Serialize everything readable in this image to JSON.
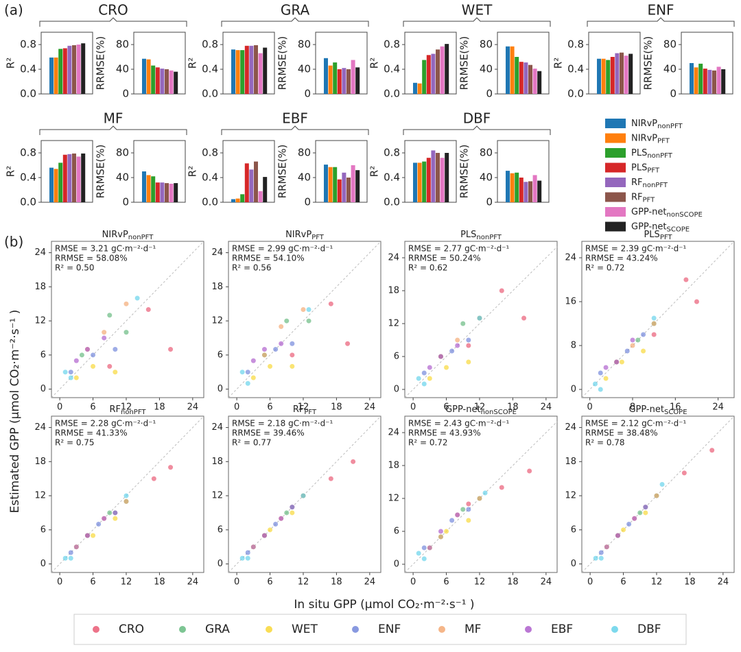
{
  "figure": {
    "panel_labels": [
      "(a)",
      "(b)"
    ],
    "xlabel": "In situ GPP (μmol CO₂·m⁻²·s⁻¹ )",
    "ylabel": "Estimated GPP (μmol CO₂·m⁻²·s⁻¹ )",
    "methods": [
      {
        "name": "NIRvP",
        "sub": "nonPFT",
        "color": "#1f77b4"
      },
      {
        "name": "NIRvP",
        "sub": "PFT",
        "color": "#ff7f0e"
      },
      {
        "name": "PLS",
        "sub": "nonPFT",
        "color": "#2ca02c"
      },
      {
        "name": "PLS",
        "sub": "PFT",
        "color": "#d62728"
      },
      {
        "name": "RF",
        "sub": "nonPFT",
        "color": "#9467bd"
      },
      {
        "name": "RF",
        "sub": "PFT",
        "color": "#8c564b"
      },
      {
        "name": "GPP-net",
        "sub": "nonSCOPE",
        "color": "#e377c2"
      },
      {
        "name": "GPP-net",
        "sub": "SCOPE",
        "color": "#222222"
      }
    ],
    "pfts": [
      {
        "name": "CRO",
        "color": "#e8506c"
      },
      {
        "name": "GRA",
        "color": "#5db678"
      },
      {
        "name": "WET",
        "color": "#f7d52a"
      },
      {
        "name": "ENF",
        "color": "#6a7fd8"
      },
      {
        "name": "MF",
        "color": "#f2a46c"
      },
      {
        "name": "EBF",
        "color": "#a955c9"
      },
      {
        "name": "DBF",
        "color": "#5ccfe9"
      }
    ]
  },
  "chart_data": [
    {
      "type": "bar",
      "title": "CRO",
      "ylabel": "R²",
      "values": [
        0.59,
        0.59,
        0.73,
        0.74,
        0.78,
        0.79,
        0.8,
        0.82
      ],
      "ylim": [
        0,
        1
      ],
      "yticks": [
        {
          "value": 0,
          "label": "0.0"
        },
        0.4,
        0.8
      ]
    },
    {
      "type": "bar",
      "ylabel": "RRMSE(%)",
      "values": [
        57,
        56,
        46,
        43,
        41,
        40,
        38,
        36
      ],
      "ylim": [
        0,
        100
      ],
      "yticks": [
        0,
        40,
        80
      ]
    },
    {
      "type": "bar",
      "title": "GRA",
      "ylabel": "R²",
      "values": [
        0.72,
        0.71,
        0.71,
        0.78,
        0.78,
        0.79,
        0.66,
        0.75
      ],
      "ylim": [
        0,
        1
      ],
      "yticks": [
        {
          "value": 0,
          "label": "0.0"
        },
        0.4,
        0.8
      ]
    },
    {
      "type": "bar",
      "ylabel": "RRMSE(%)",
      "values": [
        58,
        46,
        51,
        40,
        42,
        40,
        55,
        43
      ],
      "ylim": [
        0,
        100
      ],
      "yticks": [
        0,
        40,
        80
      ]
    },
    {
      "type": "bar",
      "title": "WET",
      "ylabel": "R²",
      "values": [
        0.18,
        0.17,
        0.55,
        0.63,
        0.65,
        0.72,
        0.77,
        0.81
      ],
      "ylim": [
        0,
        1
      ],
      "yticks": [
        {
          "value": 0,
          "label": "0.0"
        },
        0.4,
        0.8
      ]
    },
    {
      "type": "bar",
      "ylabel": "RRMSE(%)",
      "values": [
        77,
        77,
        60,
        52,
        51,
        47,
        41,
        37
      ],
      "ylim": [
        0,
        100
      ],
      "yticks": [
        0,
        40,
        80
      ]
    },
    {
      "type": "bar",
      "title": "ENF",
      "ylabel": "R²",
      "values": [
        0.57,
        0.57,
        0.55,
        0.6,
        0.66,
        0.67,
        0.62,
        0.65
      ],
      "ylim": [
        0,
        1
      ],
      "yticks": [
        {
          "value": 0,
          "label": "0.0"
        },
        0.4,
        0.8
      ]
    },
    {
      "type": "bar",
      "ylabel": "RRMSE(%)",
      "values": [
        50,
        43,
        49,
        41,
        39,
        38,
        44,
        40
      ],
      "ylim": [
        0,
        100
      ],
      "yticks": [
        0,
        40,
        80
      ]
    },
    {
      "type": "bar",
      "title": "MF",
      "ylabel": "R²",
      "values": [
        0.56,
        0.54,
        0.64,
        0.77,
        0.78,
        0.79,
        0.74,
        0.79
      ],
      "ylim": [
        0,
        1
      ],
      "yticks": [
        {
          "value": 0,
          "label": "0.0"
        },
        0.4,
        0.8
      ]
    },
    {
      "type": "bar",
      "ylabel": "RRMSE(%)",
      "values": [
        50,
        44,
        42,
        32,
        32,
        31,
        30,
        31
      ],
      "ylim": [
        0,
        100
      ],
      "yticks": [
        0,
        40,
        80
      ]
    },
    {
      "type": "bar",
      "title": "EBF",
      "ylabel": "R²",
      "values": [
        0.05,
        0.06,
        0.13,
        0.63,
        0.53,
        0.66,
        0.18,
        0.41
      ],
      "ylim": [
        0,
        1
      ],
      "yticks": [
        {
          "value": 0,
          "label": "0.0"
        },
        0.4,
        0.8
      ]
    },
    {
      "type": "bar",
      "ylabel": "RRMSE(%)",
      "values": [
        61,
        57,
        57,
        37,
        48,
        40,
        60,
        52
      ],
      "ylim": [
        0,
        100
      ],
      "yticks": [
        0,
        40,
        80
      ]
    },
    {
      "type": "bar",
      "title": "DBF",
      "ylabel": "R²",
      "values": [
        0.64,
        0.64,
        0.66,
        0.72,
        0.84,
        0.8,
        0.72,
        0.8
      ],
      "ylim": [
        0,
        1
      ],
      "yticks": [
        {
          "value": 0,
          "label": "0.0"
        },
        0.4,
        0.8
      ]
    },
    {
      "type": "bar",
      "ylabel": "RRMSE(%)",
      "values": [
        51,
        47,
        48,
        40,
        33,
        34,
        44,
        35
      ],
      "ylim": [
        0,
        100
      ],
      "yticks": [
        0,
        40,
        80
      ]
    },
    {
      "type": "scatter",
      "title": "NIRvP",
      "title_sub": "nonPFT",
      "annotations": [
        "RMSE = 3.21 gC·m⁻²·d⁻¹",
        "RRMSE = 58.08%",
        "R² = 0.50"
      ],
      "xlim": [
        -1.5,
        26
      ],
      "ylim": [
        -1.5,
        26
      ],
      "xticks": [
        0,
        6,
        12,
        18,
        24
      ],
      "yticks": [
        0,
        6,
        12,
        18,
        24
      ],
      "series": [
        {
          "x": [
            20,
            16,
            9
          ],
          "values": [
            7,
            14,
            4
          ]
        },
        {
          "x": [
            9,
            4,
            12
          ],
          "values": [
            13,
            6,
            10
          ]
        },
        {
          "x": [
            10,
            6,
            3
          ],
          "values": [
            3,
            4,
            2
          ]
        },
        {
          "x": [
            6,
            10,
            2
          ],
          "values": [
            6,
            7,
            3
          ]
        },
        {
          "x": [
            8,
            12,
            5
          ],
          "values": [
            10,
            15,
            7
          ]
        },
        {
          "x": [
            5,
            3,
            8
          ],
          "values": [
            7,
            5,
            9
          ]
        },
        {
          "x": [
            1,
            2,
            14
          ],
          "values": [
            3,
            2,
            16
          ]
        }
      ]
    },
    {
      "type": "scatter",
      "title": "NIRvP",
      "title_sub": "PFT",
      "annotations": [
        "RMSE = 2.99 gC·m⁻²·d⁻¹",
        "RRMSE = 54.10%",
        "R² = 0.56"
      ],
      "xlim": [
        -1.5,
        26
      ],
      "ylim": [
        -1.5,
        26
      ],
      "xticks": [
        0,
        6,
        12,
        18,
        24
      ],
      "yticks": [
        0,
        6,
        12,
        18,
        24
      ],
      "series": [
        {
          "x": [
            20,
            17,
            10
          ],
          "values": [
            8,
            15,
            6
          ]
        },
        {
          "x": [
            9,
            5,
            13
          ],
          "values": [
            12,
            6,
            12
          ]
        },
        {
          "x": [
            10,
            6,
            3
          ],
          "values": [
            4,
            4,
            2
          ]
        },
        {
          "x": [
            7,
            10,
            2
          ],
          "values": [
            7,
            8,
            3
          ]
        },
        {
          "x": [
            8,
            12,
            5
          ],
          "values": [
            11,
            14,
            6
          ]
        },
        {
          "x": [
            5,
            3,
            8
          ],
          "values": [
            7,
            5,
            8
          ]
        },
        {
          "x": [
            1,
            2,
            13
          ],
          "values": [
            3,
            1,
            14
          ]
        }
      ]
    },
    {
      "type": "scatter",
      "title": "PLS",
      "title_sub": "nonPFT",
      "annotations": [
        "RMSE = 2.77 gC·m⁻²·d⁻¹",
        "RRMSE = 50.24%",
        "R² = 0.62"
      ],
      "xlim": [
        -1.5,
        26
      ],
      "ylim": [
        -1.5,
        27
      ],
      "xticks": [
        0,
        6,
        12,
        18,
        24
      ],
      "yticks": [
        0,
        6,
        12,
        18,
        24
      ],
      "series": [
        {
          "x": [
            20,
            16,
            10
          ],
          "values": [
            13,
            18,
            8
          ]
        },
        {
          "x": [
            9,
            5,
            12
          ],
          "values": [
            12,
            6,
            13
          ]
        },
        {
          "x": [
            10,
            6,
            3
          ],
          "values": [
            5,
            4,
            2
          ]
        },
        {
          "x": [
            7,
            10,
            2
          ],
          "values": [
            7,
            9,
            3
          ]
        },
        {
          "x": [
            8,
            12,
            5
          ],
          "values": [
            9,
            13,
            6
          ]
        },
        {
          "x": [
            5,
            3,
            8
          ],
          "values": [
            6,
            4,
            8
          ]
        },
        {
          "x": [
            1,
            2,
            12
          ],
          "values": [
            2,
            1,
            13
          ]
        }
      ]
    },
    {
      "type": "scatter",
      "title": "PLS",
      "title_sub": "PFT",
      "annotations": [
        "RMSE = 2.39 gC·m⁻²·d⁻¹",
        "RRMSE = 43.24%",
        "R² = 0.72"
      ],
      "xlim": [
        -1.5,
        27
      ],
      "ylim": [
        -1.5,
        27
      ],
      "xticks": [
        0,
        8,
        16,
        24
      ],
      "yticks": [
        0,
        8,
        16,
        24
      ],
      "series": [
        {
          "x": [
            20,
            18,
            12
          ],
          "values": [
            16,
            20,
            10
          ]
        },
        {
          "x": [
            9,
            5,
            12
          ],
          "values": [
            9,
            5,
            12
          ]
        },
        {
          "x": [
            10,
            6,
            3
          ],
          "values": [
            7,
            5,
            2
          ]
        },
        {
          "x": [
            7,
            10,
            2
          ],
          "values": [
            7,
            10,
            3
          ]
        },
        {
          "x": [
            8,
            12,
            5
          ],
          "values": [
            8,
            12,
            5
          ]
        },
        {
          "x": [
            5,
            3,
            8
          ],
          "values": [
            5,
            4,
            9
          ]
        },
        {
          "x": [
            1,
            2,
            12
          ],
          "values": [
            1,
            0,
            13
          ]
        }
      ]
    },
    {
      "type": "scatter",
      "title": "RF",
      "title_sub": "nonPFT",
      "annotations": [
        "RMSE = 2.28 gC·m⁻²·d⁻¹",
        "RRMSE = 41.33%",
        "R² = 0.75"
      ],
      "xlim": [
        -1.5,
        26
      ],
      "ylim": [
        -1.5,
        26
      ],
      "xticks": [
        0,
        6,
        12,
        18,
        24
      ],
      "yticks": [
        0,
        6,
        12,
        18,
        24
      ],
      "series": [
        {
          "x": [
            20,
            17,
            10
          ],
          "values": [
            17,
            15,
            9
          ]
        },
        {
          "x": [
            9,
            5,
            12
          ],
          "values": [
            9,
            5,
            11
          ]
        },
        {
          "x": [
            10,
            6,
            3
          ],
          "values": [
            8,
            5,
            3
          ]
        },
        {
          "x": [
            7,
            10,
            2
          ],
          "values": [
            7,
            9,
            2
          ]
        },
        {
          "x": [
            8,
            12,
            5
          ],
          "values": [
            8,
            11,
            5
          ]
        },
        {
          "x": [
            5,
            3,
            8
          ],
          "values": [
            5,
            3,
            8
          ]
        },
        {
          "x": [
            1,
            2,
            12
          ],
          "values": [
            1,
            1,
            12
          ]
        }
      ]
    },
    {
      "type": "scatter",
      "title": "RF",
      "title_sub": "PFT",
      "annotations": [
        "RMSE = 2.18 gC·m⁻²·d⁻¹",
        "RRMSE = 39.46%",
        "R² = 0.77"
      ],
      "xlim": [
        -1.5,
        26
      ],
      "ylim": [
        -1.5,
        26
      ],
      "xticks": [
        0,
        6,
        12,
        18,
        24
      ],
      "yticks": [
        0,
        6,
        12,
        18,
        24
      ],
      "series": [
        {
          "x": [
            21,
            17,
            10
          ],
          "values": [
            18,
            15,
            10
          ]
        },
        {
          "x": [
            9,
            5,
            12
          ],
          "values": [
            9,
            5,
            12
          ]
        },
        {
          "x": [
            10,
            6,
            3
          ],
          "values": [
            9,
            6,
            3
          ]
        },
        {
          "x": [
            7,
            10,
            2
          ],
          "values": [
            7,
            10,
            2
          ]
        },
        {
          "x": [
            8,
            12,
            5
          ],
          "values": [
            8,
            12,
            5
          ]
        },
        {
          "x": [
            5,
            3,
            8
          ],
          "values": [
            5,
            3,
            8
          ]
        },
        {
          "x": [
            1,
            2,
            12
          ],
          "values": [
            1,
            1,
            12
          ]
        }
      ]
    },
    {
      "type": "scatter",
      "title": "GPP-net",
      "title_sub": "nonSCOPE",
      "annotations": [
        "RMSE = 2.43 gC·m⁻²·d⁻¹",
        "RRMSE = 43.93%",
        "R² = 0.72"
      ],
      "xlim": [
        -1.5,
        26
      ],
      "ylim": [
        -1.5,
        27
      ],
      "xticks": [
        0,
        6,
        12,
        18,
        24
      ],
      "yticks": [
        0,
        6,
        12,
        18,
        24
      ],
      "series": [
        {
          "x": [
            21,
            16,
            10
          ],
          "values": [
            17,
            14,
            11
          ]
        },
        {
          "x": [
            9,
            5,
            12
          ],
          "values": [
            10,
            5,
            12
          ]
        },
        {
          "x": [
            10,
            6,
            3
          ],
          "values": [
            8,
            6,
            3
          ]
        },
        {
          "x": [
            7,
            10,
            2
          ],
          "values": [
            8,
            10,
            3
          ]
        },
        {
          "x": [
            8,
            12,
            5
          ],
          "values": [
            9,
            12,
            5
          ]
        },
        {
          "x": [
            5,
            3,
            8
          ],
          "values": [
            6,
            3,
            9
          ]
        },
        {
          "x": [
            1,
            2,
            13
          ],
          "values": [
            2,
            1,
            13
          ]
        }
      ]
    },
    {
      "type": "scatter",
      "title": "GPP-net",
      "title_sub": "SCOPE",
      "annotations": [
        "RMSE = 2.12 gC·m⁻²·d⁻¹",
        "RRMSE = 38.48%",
        "R² = 0.78"
      ],
      "xlim": [
        -1.5,
        26
      ],
      "ylim": [
        -1.5,
        26
      ],
      "xticks": [
        0,
        6,
        12,
        18,
        24
      ],
      "yticks": [
        0,
        6,
        12,
        18,
        24
      ],
      "series": [
        {
          "x": [
            22,
            17,
            10
          ],
          "values": [
            20,
            16,
            10
          ]
        },
        {
          "x": [
            9,
            5,
            12
          ],
          "values": [
            9,
            5,
            12
          ]
        },
        {
          "x": [
            10,
            6,
            3
          ],
          "values": [
            9,
            6,
            3
          ]
        },
        {
          "x": [
            7,
            10,
            2
          ],
          "values": [
            7,
            10,
            2
          ]
        },
        {
          "x": [
            8,
            12,
            5
          ],
          "values": [
            8,
            12,
            5
          ]
        },
        {
          "x": [
            5,
            3,
            8
          ],
          "values": [
            5,
            3,
            8
          ]
        },
        {
          "x": [
            1,
            2,
            13
          ],
          "values": [
            1,
            1,
            14
          ]
        }
      ]
    }
  ]
}
